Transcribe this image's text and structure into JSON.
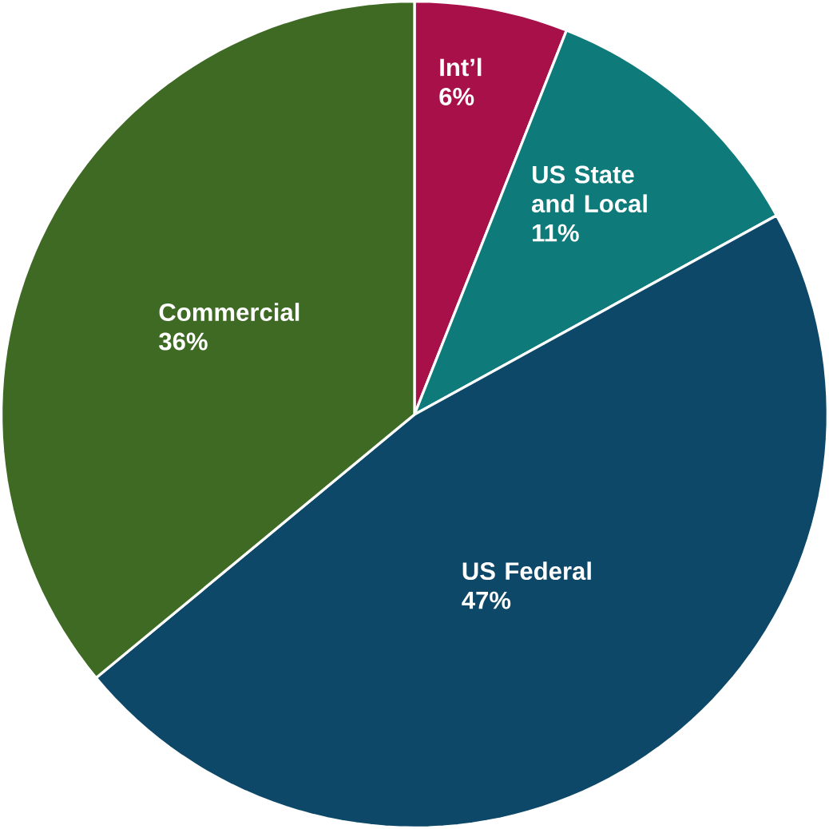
{
  "chart_data": {
    "type": "pie",
    "categories": [
      "Int’l",
      "US State and Local",
      "US Federal",
      "Commercial"
    ],
    "values": [
      6,
      11,
      47,
      36
    ],
    "value_labels": [
      "6%",
      "11%",
      "47%",
      "36%"
    ],
    "colors": [
      "#a8104a",
      "#0f7a7a",
      "#0d4868",
      "#3e6a24"
    ]
  }
}
